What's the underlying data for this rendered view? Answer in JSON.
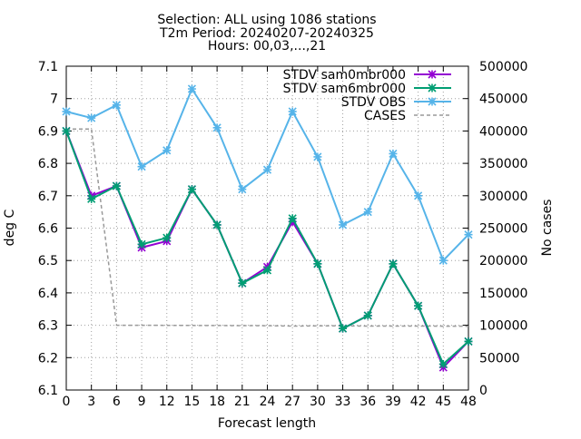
{
  "chart_data": {
    "type": "line",
    "title_lines": [
      "Selection: ALL using  1086 stations",
      "T2m   Period: 20240207-20240325",
      "Hours: 00,03,...,21"
    ],
    "xlabel": "Forecast length",
    "ylabel": "deg C",
    "y2label": "No cases",
    "x": [
      0,
      3,
      6,
      9,
      12,
      15,
      18,
      21,
      24,
      27,
      30,
      33,
      36,
      39,
      42,
      45,
      48
    ],
    "xlim": [
      0,
      48
    ],
    "ylim": [
      6.1,
      7.1
    ],
    "y2lim": [
      0,
      500000
    ],
    "yticks": [
      6.1,
      6.2,
      6.3,
      6.4,
      6.5,
      6.6,
      6.7,
      6.8,
      6.9,
      7,
      7.1
    ],
    "ytick_labels": [
      "6.1",
      "6.2",
      "6.3",
      "6.4",
      "6.5",
      "6.6",
      "6.7",
      "6.8",
      "6.9",
      "7",
      "7.1"
    ],
    "y2ticks": [
      0,
      50000,
      100000,
      150000,
      200000,
      250000,
      300000,
      350000,
      400000,
      450000,
      500000
    ],
    "y2tick_labels": [
      "0",
      "50000",
      "100000",
      "150000",
      "200000",
      "250000",
      "300000",
      "350000",
      "400000",
      "450000",
      "500000"
    ],
    "xticks": [
      0,
      3,
      6,
      9,
      12,
      15,
      18,
      21,
      24,
      27,
      30,
      33,
      36,
      39,
      42,
      45,
      48
    ],
    "xtick_labels": [
      "0",
      "3",
      "6",
      "9",
      "12",
      "15",
      "18",
      "21",
      "24",
      "27",
      "30",
      "33",
      "36",
      "39",
      "42",
      "45",
      "48"
    ],
    "grid": true,
    "legend_position": "top-right",
    "series": [
      {
        "name": "STDV sam0mbr000",
        "axis": "y1",
        "color": "#9400d3",
        "marker": "x-cross",
        "values": [
          6.9,
          6.7,
          6.73,
          6.54,
          6.56,
          6.72,
          6.61,
          6.43,
          6.48,
          6.62,
          6.49,
          6.29,
          6.33,
          6.49,
          6.36,
          6.17,
          6.25
        ]
      },
      {
        "name": "STDV sam6mbr000",
        "axis": "y1",
        "color": "#009e73",
        "marker": "x-cross",
        "values": [
          6.9,
          6.69,
          6.73,
          6.55,
          6.57,
          6.72,
          6.61,
          6.43,
          6.47,
          6.63,
          6.49,
          6.29,
          6.33,
          6.49,
          6.36,
          6.18,
          6.25
        ]
      },
      {
        "name": "STDV OBS",
        "axis": "y1",
        "color": "#56b4e9",
        "marker": "x-cross",
        "values": [
          6.96,
          6.94,
          6.98,
          6.79,
          6.84,
          7.03,
          6.91,
          6.72,
          6.78,
          6.96,
          6.82,
          6.61,
          6.65,
          6.83,
          6.7,
          6.5,
          6.58
        ]
      },
      {
        "name": "CASES",
        "axis": "y2",
        "color": "#999999",
        "marker": "none",
        "dashed": true,
        "values": [
          403000,
          403000,
          100000,
          100000,
          99800,
          99700,
          99600,
          99500,
          99300,
          98800,
          99000,
          99000,
          98800,
          98700,
          98700,
          98600,
          98500
        ]
      }
    ]
  }
}
